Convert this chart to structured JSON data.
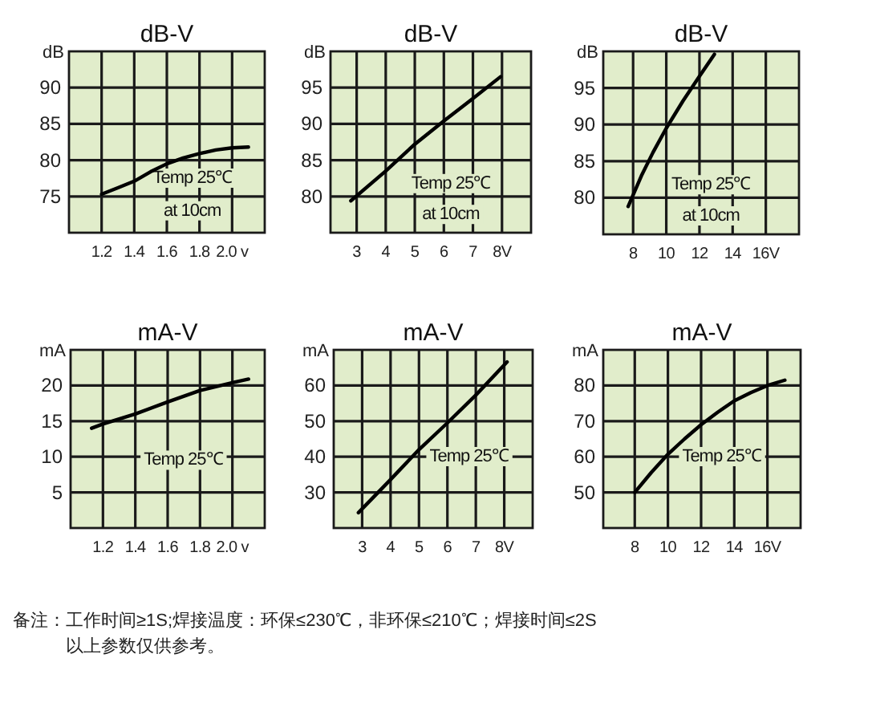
{
  "chart_data": [
    {
      "type": "line",
      "title": "dB-V",
      "ylabel": "dB",
      "xlim": [
        1.0,
        2.2
      ],
      "ylim": [
        70,
        95
      ],
      "xticks": [
        1.2,
        1.4,
        1.6,
        1.8,
        {
          "value": 2.0,
          "label": "2.0 v"
        }
      ],
      "yticks": [
        75,
        80,
        85,
        90
      ],
      "grid": true,
      "marker": "none",
      "line_style": "solid",
      "annotations": [
        "Temp 25℃",
        "at 10cm"
      ],
      "series": [
        {
          "color": "#000000",
          "x": [
            1.2,
            1.3,
            1.4,
            1.5,
            1.6,
            1.7,
            1.8,
            1.9,
            2.0,
            2.1
          ],
          "values": [
            75.3,
            76.2,
            77.1,
            78.4,
            79.5,
            80.3,
            80.9,
            81.4,
            81.7,
            81.8
          ]
        }
      ]
    },
    {
      "type": "line",
      "title": "dB-V",
      "ylabel": "dB",
      "xlim": [
        2.1,
        9.0
      ],
      "ylim": [
        75,
        100
      ],
      "xticks": [
        3,
        4,
        5,
        6,
        7,
        {
          "value": 8,
          "label": "8V"
        }
      ],
      "yticks": [
        80,
        85,
        90,
        95
      ],
      "grid": true,
      "marker": "none",
      "line_style": "solid",
      "annotations": [
        "Temp 25℃",
        "at 10cm"
      ],
      "series": [
        {
          "color": "#000000",
          "x": [
            2.8,
            4,
            5,
            6,
            7,
            7.95
          ],
          "values": [
            79.4,
            83.5,
            87.2,
            90.4,
            93.5,
            96.5
          ]
        }
      ]
    },
    {
      "type": "line",
      "title": "dB-V",
      "ylabel": "dB",
      "xlim": [
        6.2,
        18
      ],
      "ylim": [
        75,
        100
      ],
      "xticks": [
        8,
        10,
        12,
        14,
        {
          "value": 16,
          "label": "16V"
        }
      ],
      "yticks": [
        80,
        85,
        90,
        95
      ],
      "grid": true,
      "marker": "none",
      "line_style": "solid",
      "annotations": [
        "Temp 25℃",
        "at 10cm"
      ],
      "series": [
        {
          "color": "#000000",
          "x": [
            7.7,
            8.5,
            9.2,
            10,
            11,
            12,
            12.9
          ],
          "values": [
            78.8,
            83,
            86.2,
            89.5,
            93.2,
            96.6,
            99.6
          ]
        }
      ]
    },
    {
      "type": "line",
      "title": "mA-V",
      "ylabel": "mA",
      "xlim": [
        1.0,
        2.2
      ],
      "ylim": [
        0,
        25
      ],
      "xticks": [
        1.2,
        1.4,
        1.6,
        1.8,
        {
          "value": 2.0,
          "label": "2.0 v"
        }
      ],
      "yticks": [
        5,
        10,
        15,
        20
      ],
      "grid": true,
      "marker": "none",
      "line_style": "solid",
      "annotations": [
        "Temp 25℃"
      ],
      "series": [
        {
          "color": "#000000",
          "x": [
            1.13,
            1.2,
            1.4,
            1.6,
            1.8,
            2.0,
            2.1
          ],
          "values": [
            14.0,
            14.6,
            16.0,
            17.7,
            19.3,
            20.4,
            20.9
          ]
        }
      ]
    },
    {
      "type": "line",
      "title": "mA-V",
      "ylabel": "mA",
      "xlim": [
        2,
        9
      ],
      "ylim": [
        20,
        70
      ],
      "xticks": [
        3,
        4,
        5,
        6,
        7,
        {
          "value": 8,
          "label": "8V"
        }
      ],
      "yticks": [
        30,
        40,
        50,
        60
      ],
      "grid": true,
      "marker": "none",
      "line_style": "solid",
      "annotations": [
        "Temp 25℃"
      ],
      "series": [
        {
          "color": "#000000",
          "x": [
            2.87,
            4,
            5,
            6,
            7,
            8.1
          ],
          "values": [
            24.3,
            33.6,
            42,
            49.5,
            57.3,
            66.6
          ]
        }
      ]
    },
    {
      "type": "line",
      "title": "mA-V",
      "ylabel": "mA",
      "xlim": [
        6.1,
        18
      ],
      "ylim": [
        40,
        90
      ],
      "xticks": [
        8,
        10,
        12,
        14,
        {
          "value": 16,
          "label": "16V"
        }
      ],
      "yticks": [
        50,
        60,
        70,
        80
      ],
      "grid": true,
      "marker": "none",
      "line_style": "solid",
      "annotations": [
        "Temp 25℃"
      ],
      "series": [
        {
          "color": "#000000",
          "x": [
            8,
            9,
            10,
            11,
            12,
            13,
            14,
            15,
            16,
            17.05
          ],
          "values": [
            50,
            55.6,
            60.7,
            65,
            69,
            72.5,
            75.7,
            78,
            80,
            81.5
          ]
        }
      ]
    },
    {
      "type": "other",
      "annotations": [
        "备注：",
        "工作时间≥1S;焊接温度：环保≤230℃，非环保≤210℃；焊接时间≤2S",
        "以上参数仅供参考。"
      ]
    }
  ]
}
